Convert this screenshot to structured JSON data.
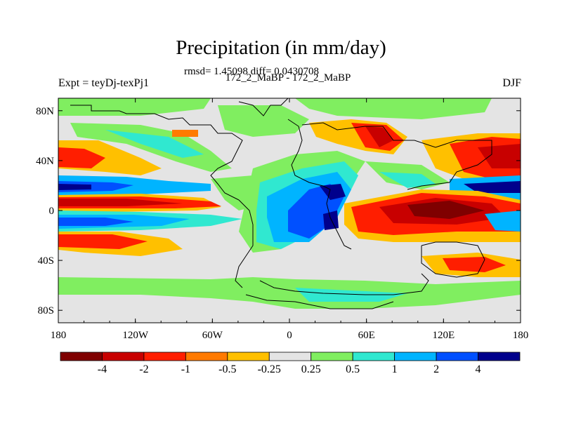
{
  "title": "Precipitation (in mm/day)",
  "stats_line": "rmsd= 1.45098 diff= 0.0430708",
  "comparison_line": "172_2_MaBP - 172_2_MaBP",
  "left_label": "Expt = teyDj-texPj1",
  "season": "DJF",
  "map": {
    "x_tick_labels": [
      "180",
      "120W",
      "60W",
      "0",
      "60E",
      "120E",
      "180"
    ],
    "x_tick_lons": [
      -180,
      -120,
      -60,
      0,
      60,
      120,
      180
    ],
    "y_tick_labels": [
      "80N",
      "40N",
      "0",
      "40S",
      "80S"
    ],
    "y_tick_lats": [
      80,
      40,
      0,
      -40,
      -80
    ],
    "lat_range": [
      -90,
      90
    ],
    "lon_range": [
      -180,
      180
    ]
  },
  "colorbar": {
    "levels": [
      "-4",
      "-2",
      "-1",
      "-0.5",
      "-0.25",
      "0.25",
      "0.5",
      "1",
      "2",
      "4"
    ],
    "colors": [
      "#7f0000",
      "#c80000",
      "#ff1e00",
      "#ff7a00",
      "#ffc000",
      "#e4e4e4",
      "#80ee60",
      "#30e8d0",
      "#00b4ff",
      "#0050ff",
      "#00008c"
    ]
  }
}
